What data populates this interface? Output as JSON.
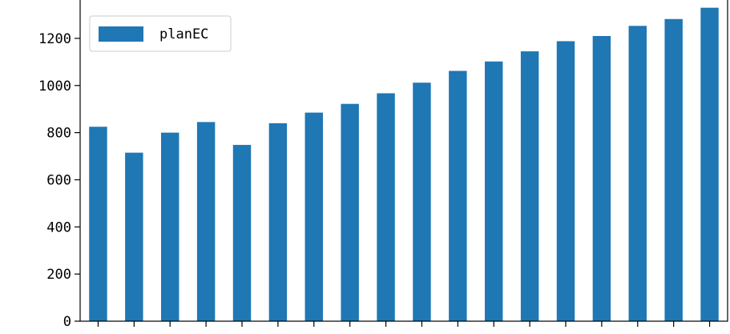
{
  "chart_data": {
    "type": "bar",
    "legend": {
      "entries": [
        "planEC"
      ],
      "placement": "top-left"
    },
    "series": [
      {
        "name": "planEC",
        "color": "#1f77b4",
        "values": [
          825,
          715,
          800,
          845,
          748,
          840,
          885,
          922,
          967,
          1012,
          1062,
          1102,
          1145,
          1188,
          1210,
          1253,
          1282,
          1330
        ]
      }
    ],
    "categories_count": 18,
    "ylim": [
      0,
      1390
    ],
    "yticks": [
      0,
      200,
      400,
      600,
      800,
      1000,
      1200
    ],
    "grid": false
  }
}
